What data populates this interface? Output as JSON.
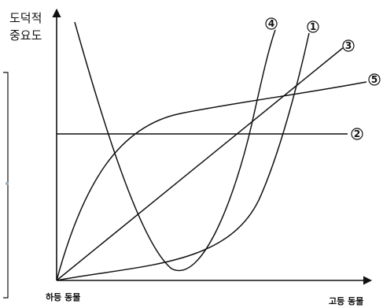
{
  "y_axis_label": {
    "line1": "도덕적",
    "line2": "중요도"
  },
  "x_axis": {
    "left_label": "하등 동물",
    "right_label": "고등 동물"
  },
  "curves": [
    {
      "id": "1",
      "label": "①"
    },
    {
      "id": "2",
      "label": "②"
    },
    {
      "id": "3",
      "label": "③"
    },
    {
      "id": "4",
      "label": "④"
    },
    {
      "id": "5",
      "label": "⑤"
    }
  ]
}
